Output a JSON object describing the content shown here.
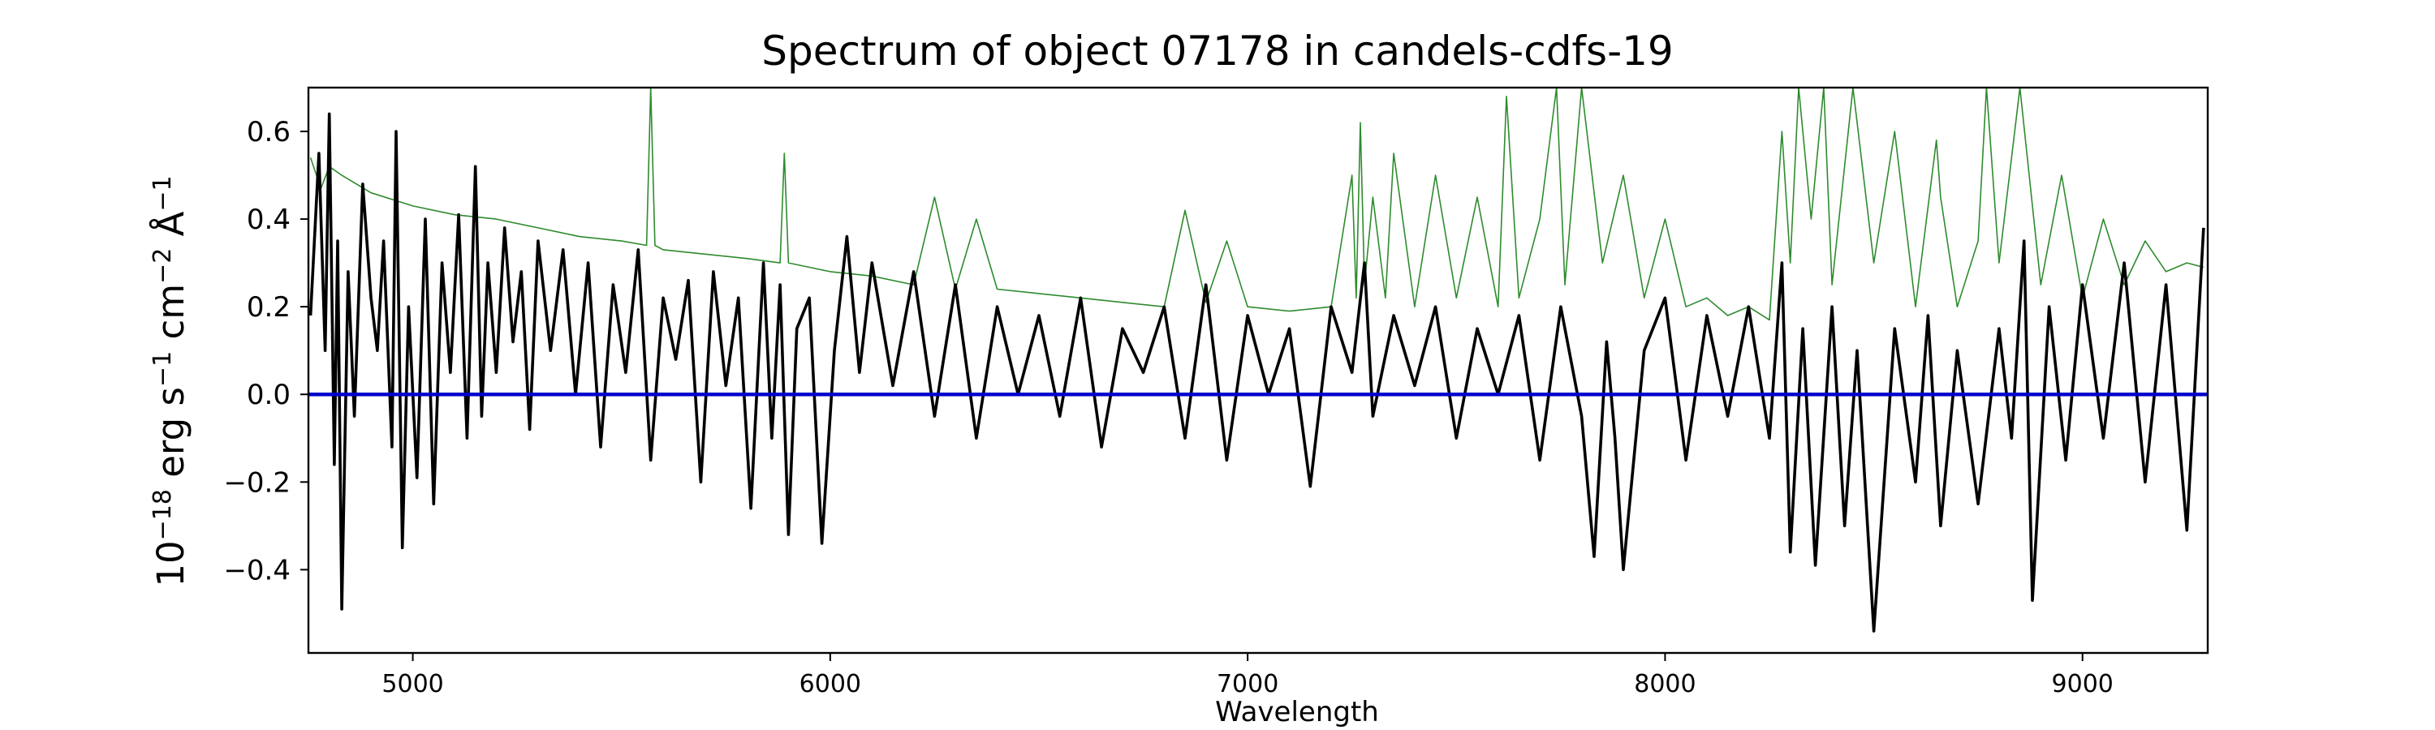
{
  "chart_data": {
    "type": "line",
    "title": "Spectrum of object 07178 in candels-cdfs-19",
    "xlabel": "Wavelength",
    "ylabel": {
      "prefix": "10",
      "prefix_exp": "−18",
      "part1": " erg s",
      "exp1": "−1",
      "part2": " cm",
      "exp2": "−2",
      "part3": " Å",
      "exp3": "−1"
    },
    "xlim": [
      4750,
      9300
    ],
    "ylim": [
      -0.59,
      0.7
    ],
    "xticks": [
      5000,
      6000,
      7000,
      8000,
      9000
    ],
    "yticks": [
      -0.4,
      -0.2,
      0.0,
      0.2,
      0.4,
      0.6
    ],
    "xtick_labels": [
      "5000",
      "6000",
      "7000",
      "8000",
      "9000"
    ],
    "ytick_labels": [
      "−0.4",
      "−0.2",
      "0.0",
      "0.2",
      "0.4",
      "0.6"
    ],
    "grid": false,
    "legend": "none",
    "series": [
      {
        "role": "flux",
        "color": "#000000",
        "x": [
          4755,
          4775,
          4790,
          4800,
          4812,
          4820,
          4830,
          4845,
          4860,
          4880,
          4900,
          4915,
          4930,
          4950,
          4960,
          4975,
          4990,
          5010,
          5030,
          5050,
          5070,
          5090,
          5110,
          5130,
          5150,
          5165,
          5180,
          5200,
          5220,
          5240,
          5260,
          5280,
          5300,
          5330,
          5360,
          5390,
          5420,
          5450,
          5480,
          5510,
          5540,
          5570,
          5600,
          5630,
          5660,
          5690,
          5720,
          5750,
          5780,
          5810,
          5840,
          5860,
          5880,
          5900,
          5920,
          5950,
          5980,
          6010,
          6040,
          6070,
          6100,
          6150,
          6200,
          6250,
          6300,
          6350,
          6400,
          6450,
          6500,
          6550,
          6600,
          6650,
          6700,
          6750,
          6800,
          6850,
          6900,
          6950,
          7000,
          7050,
          7100,
          7150,
          7200,
          7250,
          7280,
          7300,
          7350,
          7400,
          7450,
          7500,
          7550,
          7600,
          7650,
          7700,
          7750,
          7800,
          7830,
          7860,
          7880,
          7900,
          7950,
          8000,
          8050,
          8100,
          8150,
          8200,
          8250,
          8280,
          8300,
          8330,
          8360,
          8400,
          8430,
          8460,
          8500,
          8550,
          8600,
          8630,
          8660,
          8700,
          8750,
          8800,
          8830,
          8860,
          8880,
          8920,
          8960,
          9000,
          9050,
          9100,
          9150,
          9200,
          9250,
          9290
        ],
        "y": [
          0.18,
          0.55,
          0.1,
          0.64,
          -0.16,
          0.35,
          -0.49,
          0.28,
          -0.05,
          0.48,
          0.22,
          0.1,
          0.35,
          -0.12,
          0.6,
          -0.35,
          0.2,
          -0.19,
          0.4,
          -0.25,
          0.3,
          0.05,
          0.41,
          -0.1,
          0.52,
          -0.05,
          0.3,
          0.05,
          0.38,
          0.12,
          0.28,
          -0.08,
          0.35,
          0.1,
          0.33,
          0.0,
          0.3,
          -0.12,
          0.25,
          0.05,
          0.33,
          -0.15,
          0.22,
          0.08,
          0.26,
          -0.2,
          0.28,
          0.02,
          0.22,
          -0.26,
          0.3,
          -0.1,
          0.25,
          -0.32,
          0.15,
          0.22,
          -0.34,
          0.1,
          0.36,
          0.05,
          0.3,
          0.02,
          0.28,
          -0.05,
          0.25,
          -0.1,
          0.2,
          0.0,
          0.18,
          -0.05,
          0.22,
          -0.12,
          0.15,
          0.05,
          0.2,
          -0.1,
          0.25,
          -0.15,
          0.18,
          0.0,
          0.15,
          -0.21,
          0.2,
          0.05,
          0.3,
          -0.05,
          0.18,
          0.02,
          0.2,
          -0.1,
          0.15,
          0.0,
          0.18,
          -0.15,
          0.2,
          -0.05,
          -0.37,
          0.12,
          -0.1,
          -0.4,
          0.1,
          0.22,
          -0.15,
          0.18,
          -0.05,
          0.2,
          -0.1,
          0.3,
          -0.36,
          0.15,
          -0.39,
          0.2,
          -0.3,
          0.1,
          -0.54,
          0.15,
          -0.2,
          0.18,
          -0.3,
          0.1,
          -0.25,
          0.15,
          -0.1,
          0.35,
          -0.47,
          0.2,
          -0.15,
          0.25,
          -0.1,
          0.3,
          -0.2,
          0.25,
          -0.31,
          0.38
        ]
      },
      {
        "role": "model",
        "color": "#0000cc",
        "x": [
          4750,
          9300
        ],
        "y": [
          0.0,
          0.0
        ]
      },
      {
        "role": "error",
        "color": "#2e8b2e",
        "x": [
          4755,
          4780,
          4800,
          4830,
          4900,
          5000,
          5100,
          5200,
          5300,
          5400,
          5500,
          5560,
          5570,
          5580,
          5600,
          5700,
          5800,
          5880,
          5890,
          5900,
          5950,
          6000,
          6100,
          6200,
          6250,
          6300,
          6350,
          6400,
          6500,
          6600,
          6700,
          6800,
          6850,
          6900,
          6950,
          7000,
          7100,
          7200,
          7250,
          7260,
          7270,
          7280,
          7300,
          7330,
          7350,
          7400,
          7450,
          7500,
          7550,
          7600,
          7620,
          7650,
          7700,
          7740,
          7760,
          7800,
          7850,
          7900,
          7950,
          8000,
          8050,
          8100,
          8150,
          8200,
          8250,
          8280,
          8300,
          8320,
          8350,
          8380,
          8400,
          8450,
          8500,
          8550,
          8600,
          8650,
          8660,
          8700,
          8750,
          8770,
          8800,
          8850,
          8900,
          8950,
          9000,
          9050,
          9100,
          9150,
          9200,
          9250,
          9290
        ],
        "y": [
          0.54,
          0.47,
          0.52,
          0.5,
          0.46,
          0.43,
          0.41,
          0.4,
          0.38,
          0.36,
          0.35,
          0.34,
          0.7,
          0.34,
          0.33,
          0.32,
          0.31,
          0.3,
          0.55,
          0.3,
          0.29,
          0.28,
          0.27,
          0.25,
          0.45,
          0.24,
          0.4,
          0.24,
          0.23,
          0.22,
          0.21,
          0.2,
          0.42,
          0.21,
          0.35,
          0.2,
          0.19,
          0.2,
          0.5,
          0.22,
          0.62,
          0.25,
          0.45,
          0.22,
          0.55,
          0.2,
          0.5,
          0.22,
          0.45,
          0.2,
          0.68,
          0.22,
          0.4,
          0.7,
          0.25,
          0.7,
          0.3,
          0.5,
          0.22,
          0.4,
          0.2,
          0.22,
          0.18,
          0.2,
          0.17,
          0.6,
          0.3,
          0.7,
          0.4,
          0.7,
          0.25,
          0.7,
          0.3,
          0.6,
          0.2,
          0.58,
          0.45,
          0.2,
          0.35,
          0.7,
          0.3,
          0.7,
          0.25,
          0.5,
          0.22,
          0.4,
          0.25,
          0.35,
          0.28,
          0.3,
          0.29
        ]
      }
    ]
  }
}
